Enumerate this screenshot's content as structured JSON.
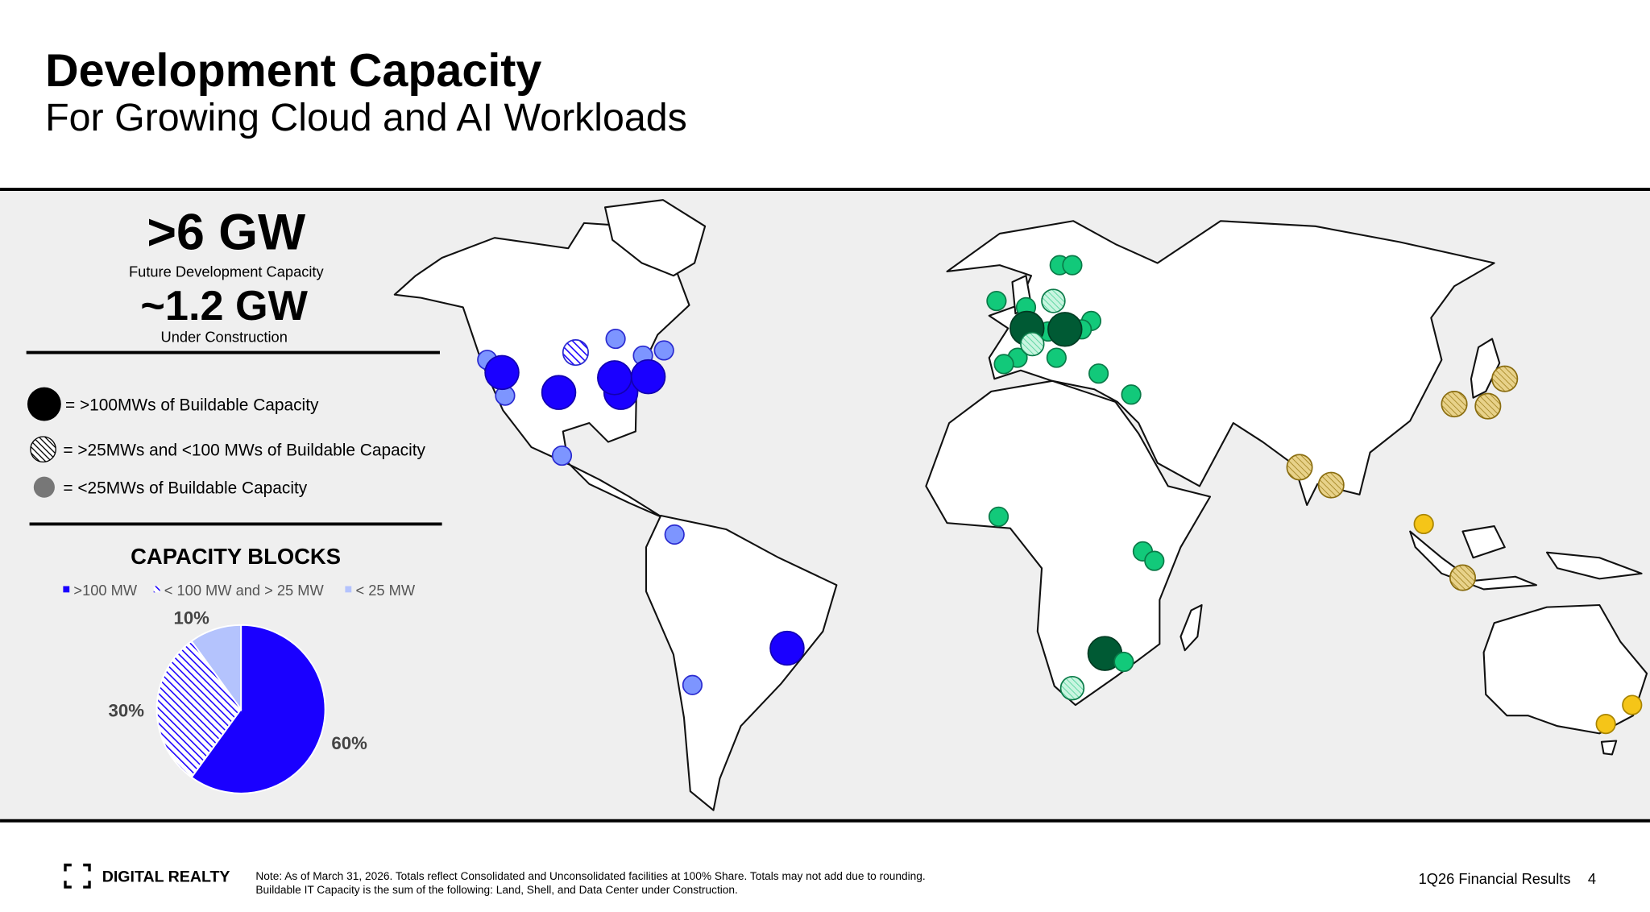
{
  "header": {
    "title": "Development Capacity",
    "subtitle": "For Growing Cloud and AI Workloads"
  },
  "stats": [
    {
      "value": ">6 GW",
      "label": "Future Development Capacity"
    },
    {
      "value": "~1.2 GW",
      "label": "Under Construction"
    }
  ],
  "key": [
    "= >100MWs of Buildable Capacity",
    "= >25MWs and <100 MWs of Buildable Capacity",
    "= <25MWs of Buildable Capacity"
  ],
  "chart_data": {
    "type": "pie",
    "title": "CAPACITY BLOCKS",
    "categories": [
      ">100 MW",
      "< 100 MW and > 25 MW",
      "< 25 MW"
    ],
    "values": [
      60,
      30,
      10
    ],
    "value_labels": [
      "60%",
      "30%",
      "10%"
    ],
    "colors": [
      "#1a00ff",
      "#1a00ff",
      "#b4c3fd"
    ],
    "hatch": [
      false,
      true,
      false
    ]
  },
  "footer": {
    "brand": "DIGITAL REALTY",
    "note": [
      "Note: As of March 31, 2026. Totals reflect Consolidated and Unconsolidated facilities at 100% Share. Totals may not add due to rounding.",
      "Buildable IT Capacity is the sum of the following: Land, Shell, and Data Center under Construction."
    ],
    "report": "1Q26 Financial Results",
    "page": 4
  }
}
